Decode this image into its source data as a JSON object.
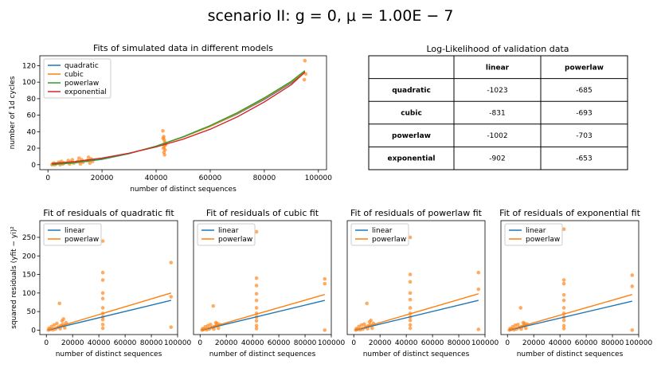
{
  "suptitle": "scenario II:  g = 0, μ = 1.00E − 7",
  "colors": {
    "blue": "#1f77b4",
    "orange": "#ff7f0e",
    "green": "#2ca02c",
    "red": "#d62728",
    "dot": "#ff7f0e"
  },
  "table": {
    "title": "Log-Likelihood of validation data",
    "col_headers": [
      "linear",
      "powerlaw"
    ],
    "rows": [
      {
        "label": "quadratic",
        "values": [
          "-1023",
          "-685"
        ]
      },
      {
        "label": "cubic",
        "values": [
          "-831",
          "-693"
        ]
      },
      {
        "label": "powerlaw",
        "values": [
          "-1002",
          "-703"
        ]
      },
      {
        "label": "exponential",
        "values": [
          "-902",
          "-653"
        ]
      }
    ]
  },
  "chart_data": [
    {
      "type": "scatter",
      "title": "Fits of simulated data in different models",
      "xlabel": "number of distinct sequences",
      "ylabel": "number of 1d cycles",
      "xlim": [
        -3000,
        103000
      ],
      "ylim": [
        -6,
        132
      ],
      "xticks": [
        0,
        20000,
        40000,
        60000,
        80000,
        100000
      ],
      "xtick_labels": [
        "0",
        "20000",
        "40000",
        "60000",
        "80000",
        "100000"
      ],
      "yticks": [
        0,
        20,
        40,
        60,
        80,
        100,
        120
      ],
      "ytick_labels": [
        "0",
        "20",
        "40",
        "60",
        "80",
        "100",
        "120"
      ],
      "legend": "upper-left",
      "series": [
        {
          "name": "quadratic",
          "color": "#1f77b4",
          "x": [
            1500,
            10000,
            20000,
            30000,
            40000,
            50000,
            60000,
            70000,
            80000,
            90000,
            95000
          ],
          "y": [
            0.5,
            2.5,
            6.5,
            13.5,
            22.5,
            33.5,
            46.5,
            61.5,
            79,
            99,
            112
          ]
        },
        {
          "name": "cubic",
          "color": "#ff7f0e",
          "x": [
            1500,
            10000,
            20000,
            30000,
            40000,
            50000,
            60000,
            70000,
            80000,
            90000,
            95000
          ],
          "y": [
            0.8,
            3,
            7,
            13.8,
            22.5,
            33.5,
            46.5,
            62,
            80,
            100,
            113
          ]
        },
        {
          "name": "powerlaw",
          "color": "#2ca02c",
          "x": [
            1500,
            10000,
            20000,
            30000,
            40000,
            50000,
            60000,
            70000,
            80000,
            90000,
            95000
          ],
          "y": [
            0.3,
            2.3,
            6.8,
            13.5,
            22.5,
            34,
            47.5,
            63,
            81,
            101,
            114
          ]
        },
        {
          "name": "exponential",
          "color": "#d62728",
          "x": [
            1500,
            10000,
            20000,
            30000,
            40000,
            50000,
            60000,
            70000,
            80000,
            90000,
            95000
          ],
          "y": [
            1.5,
            3.8,
            8,
            14,
            21.5,
            31,
            43,
            58,
            76,
            97,
            112
          ]
        }
      ],
      "points": {
        "color": "#ff7f0e",
        "x": [
          1500,
          1800,
          2200,
          2500,
          3000,
          4000,
          4500,
          5000,
          5500,
          6000,
          7500,
          8000,
          8500,
          9000,
          9500,
          11000,
          11500,
          12000,
          12500,
          13000,
          14500,
          15000,
          15500,
          16000,
          16500,
          42500,
          42800,
          43000,
          43200,
          43500,
          43000,
          42700,
          43300,
          42900,
          43100,
          42600,
          43400,
          95000,
          95300,
          94800
        ],
        "y": [
          0,
          1,
          2,
          0,
          1,
          3,
          0,
          4,
          1,
          2,
          5,
          1,
          3,
          6,
          2,
          4,
          8,
          1,
          6,
          3,
          5,
          9,
          2,
          7,
          4,
          41,
          34,
          30,
          27,
          25,
          22,
          20,
          18,
          15,
          12,
          32,
          24,
          126,
          110,
          103
        ]
      }
    },
    {
      "type": "scatter",
      "title": "Fit of residuals of quadratic fit",
      "xlabel": "number of distinct sequences",
      "ylabel": "squared residuals (yfit − yi)²",
      "xlim": [
        -5000,
        100000
      ],
      "ylim": [
        -12,
        295
      ],
      "xticks": [
        0,
        20000,
        40000,
        60000,
        80000,
        100000
      ],
      "xtick_labels": [
        "0",
        "20000",
        "40000",
        "60000",
        "80000",
        "100000"
      ],
      "yticks": [
        0,
        50,
        100,
        150,
        200,
        250
      ],
      "ytick_labels": [
        "0",
        "50",
        "100",
        "150",
        "200",
        "250"
      ],
      "legend": "upper-left",
      "series": [
        {
          "name": "linear",
          "color": "#1f77b4",
          "x": [
            1000,
            95000
          ],
          "y": [
            0,
            80
          ]
        },
        {
          "name": "powerlaw",
          "color": "#ff7f0e",
          "x": [
            1000,
            95000
          ],
          "y": [
            0.5,
            100
          ]
        }
      ],
      "points": {
        "color": "#ff7f0e",
        "x": [
          1500,
          2000,
          3000,
          4000,
          5000,
          6000,
          7000,
          8000,
          9000,
          10000,
          11000,
          12000,
          13000,
          14000,
          15000,
          10500,
          12500,
          43000,
          43000,
          43000,
          43000,
          43000,
          43000,
          43000,
          43000,
          43000,
          43000,
          43000,
          95000,
          95000,
          95000
        ],
        "y": [
          0,
          5,
          2,
          10,
          1,
          14,
          3,
          18,
          8,
          72,
          12,
          25,
          30,
          6,
          20,
          4,
          15,
          240,
          155,
          135,
          100,
          85,
          60,
          45,
          35,
          28,
          15,
          5,
          182,
          90,
          8
        ]
      }
    },
    {
      "type": "scatter",
      "title": "Fit of residuals of cubic fit",
      "xlabel": "number of distinct sequences",
      "xlim": [
        -5000,
        100000
      ],
      "ylim": [
        -12,
        295
      ],
      "xticks": [
        0,
        20000,
        40000,
        60000,
        80000,
        100000
      ],
      "xtick_labels": [
        "0",
        "20000",
        "40000",
        "60000",
        "80000",
        "100000"
      ],
      "yticks": [],
      "ytick_labels": [],
      "legend": "upper-left",
      "series": [
        {
          "name": "linear",
          "color": "#1f77b4",
          "x": [
            1000,
            95000
          ],
          "y": [
            0,
            80
          ]
        },
        {
          "name": "powerlaw",
          "color": "#ff7f0e",
          "x": [
            1000,
            95000
          ],
          "y": [
            0.5,
            96
          ]
        }
      ],
      "points": {
        "color": "#ff7f0e",
        "x": [
          1500,
          2000,
          3000,
          4000,
          5000,
          6000,
          7000,
          8000,
          9000,
          10000,
          11000,
          12000,
          13000,
          14000,
          15000,
          10500,
          12500,
          43000,
          43000,
          43000,
          43000,
          43000,
          43000,
          43000,
          43000,
          43000,
          43000,
          43000,
          95000,
          95000,
          95000
        ],
        "y": [
          0,
          4,
          2,
          9,
          1,
          12,
          3,
          15,
          7,
          65,
          10,
          20,
          18,
          5,
          15,
          3,
          12,
          265,
          140,
          120,
          98,
          80,
          60,
          45,
          35,
          25,
          12,
          4,
          138,
          125,
          0
        ]
      }
    },
    {
      "type": "scatter",
      "title": "Fit of residuals of powerlaw fit",
      "xlabel": "number of distinct sequences",
      "xlim": [
        -5000,
        100000
      ],
      "ylim": [
        -12,
        295
      ],
      "xticks": [
        0,
        20000,
        40000,
        60000,
        80000,
        100000
      ],
      "xtick_labels": [
        "0",
        "20000",
        "40000",
        "60000",
        "80000",
        "100000"
      ],
      "yticks": [],
      "ytick_labels": [],
      "legend": "upper-left",
      "series": [
        {
          "name": "linear",
          "color": "#1f77b4",
          "x": [
            1000,
            95000
          ],
          "y": [
            0,
            80
          ]
        },
        {
          "name": "powerlaw",
          "color": "#ff7f0e",
          "x": [
            1000,
            95000
          ],
          "y": [
            0.5,
            98
          ]
        }
      ],
      "points": {
        "color": "#ff7f0e",
        "x": [
          1500,
          2000,
          3000,
          4000,
          5000,
          6000,
          7000,
          8000,
          9000,
          10000,
          11000,
          12000,
          13000,
          14000,
          15000,
          10500,
          12500,
          43000,
          43000,
          43000,
          43000,
          43000,
          43000,
          43000,
          43000,
          43000,
          43000,
          43000,
          95000,
          95000,
          95000
        ],
        "y": [
          0,
          4,
          2,
          10,
          1,
          14,
          3,
          16,
          8,
          72,
          11,
          22,
          26,
          5,
          18,
          4,
          14,
          250,
          150,
          130,
          100,
          82,
          60,
          45,
          35,
          26,
          14,
          5,
          155,
          110,
          2
        ]
      }
    },
    {
      "type": "scatter",
      "title": "Fit of residuals of exponential fit",
      "xlabel": "number of distinct sequences",
      "xlim": [
        -5000,
        100000
      ],
      "ylim": [
        -12,
        295
      ],
      "xticks": [
        0,
        20000,
        40000,
        60000,
        80000,
        100000
      ],
      "xtick_labels": [
        "0",
        "20000",
        "40000",
        "60000",
        "80000",
        "100000"
      ],
      "yticks": [],
      "ytick_labels": [],
      "legend": "upper-left",
      "series": [
        {
          "name": "linear",
          "color": "#1f77b4",
          "x": [
            1000,
            95000
          ],
          "y": [
            0,
            78
          ]
        },
        {
          "name": "powerlaw",
          "color": "#ff7f0e",
          "x": [
            1000,
            95000
          ],
          "y": [
            0.5,
            96
          ]
        }
      ],
      "points": {
        "color": "#ff7f0e",
        "x": [
          1500,
          2000,
          3000,
          4000,
          5000,
          6000,
          7000,
          8000,
          9000,
          10000,
          11000,
          12000,
          13000,
          14000,
          15000,
          10500,
          12500,
          43000,
          43000,
          43000,
          43000,
          43000,
          43000,
          43000,
          43000,
          43000,
          43000,
          43000,
          95000,
          95000,
          95000
        ],
        "y": [
          0,
          4,
          2,
          9,
          1,
          13,
          3,
          15,
          7,
          60,
          10,
          20,
          18,
          5,
          16,
          3,
          12,
          272,
          135,
          125,
          95,
          80,
          60,
          45,
          35,
          26,
          12,
          4,
          148,
          118,
          0
        ]
      }
    }
  ]
}
